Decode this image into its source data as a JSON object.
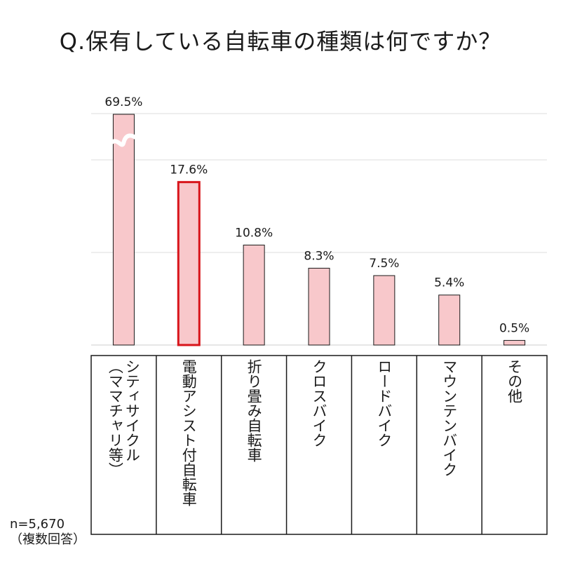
{
  "title": "Q.保有している自転車の種類は何ですか？",
  "note": {
    "n": "n=5,670",
    "multi": "（複数回答）"
  },
  "colors": {
    "bar_fill": "#f8c8cb",
    "bar_stroke": "#1a1a1a",
    "highlight": "#d8141a",
    "grid": "#dddddd"
  },
  "chart_data": {
    "type": "bar",
    "title": "Q.保有している自転車の種類は何ですか？",
    "unit": "%",
    "categories": [
      [
        "シティサイクル",
        "（ママチャリ等）"
      ],
      [
        "電動アシスト付自転車"
      ],
      [
        "折り畳み自転車"
      ],
      [
        "クロスバイク"
      ],
      [
        "ロードバイク"
      ],
      [
        "マウンテンバイク"
      ],
      [
        "その他"
      ]
    ],
    "values": [
      69.5,
      17.6,
      10.8,
      8.3,
      7.5,
      5.4,
      0.5
    ],
    "value_labels": [
      "69.5%",
      "17.6%",
      "10.8%",
      "8.3%",
      "7.5%",
      "5.4%",
      "0.5%"
    ],
    "highlighted_index": 1,
    "axis_break_index": 0,
    "grid": true,
    "ylim": [
      0,
      25
    ]
  }
}
